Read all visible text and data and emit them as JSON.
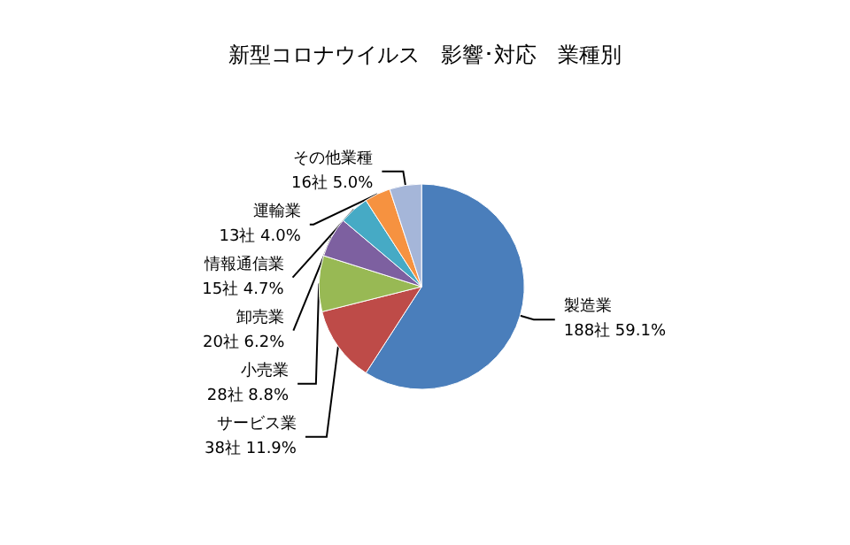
{
  "chart_data": {
    "type": "pie",
    "title": "新型コロナウイルス　影響･対応　業種別",
    "categories": [
      "製造業",
      "サービス業",
      "小売業",
      "卸売業",
      "情報通信業",
      "運輸業",
      "その他業種"
    ],
    "values": [
      188,
      38,
      28,
      20,
      15,
      13,
      16
    ],
    "value_labels": [
      "188社 59.1%",
      "38社 11.9%",
      "28社 8.8%",
      "20社 6.2%",
      "15社 4.7%",
      "13社 4.0%",
      "16社 5.0%"
    ],
    "colors": [
      "#4a7ebb",
      "#be4b48",
      "#98b954",
      "#7d60a0",
      "#46aac5",
      "#f69240",
      "#a5b6d9"
    ],
    "legend": false
  }
}
